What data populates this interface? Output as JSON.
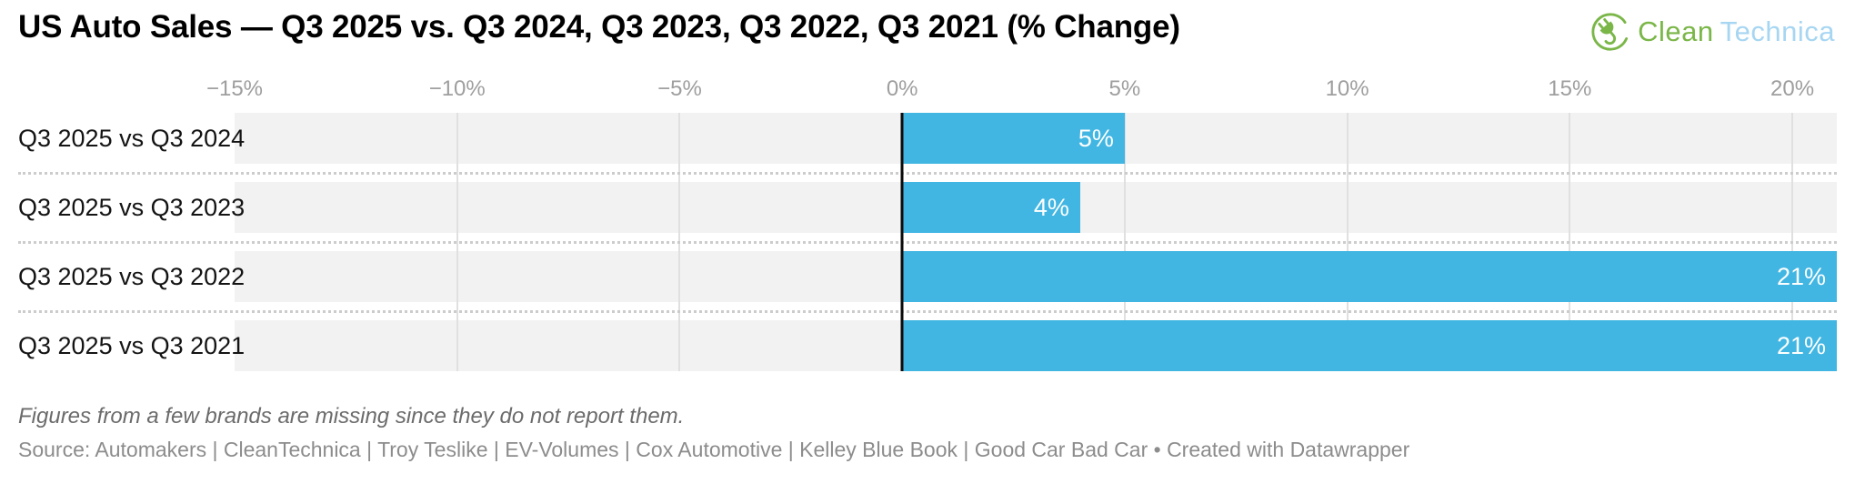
{
  "header": {
    "title": "US Auto Sales — Q3 2025 vs. Q3 2024, Q3 2023, Q3 2022, Q3 2021 (% Change)",
    "logo": {
      "icon": "cleantechnica-plug-icon",
      "text_green": "Clean",
      "text_blue": "Technica",
      "green_color": "#7ab648",
      "blue_color": "#a7d6f2"
    }
  },
  "chart_data": {
    "type": "bar",
    "orientation": "horizontal",
    "title": "US Auto Sales — Q3 2025 vs. Q3 2024, Q3 2023, Q3 2022, Q3 2021 (% Change)",
    "categories": [
      "Q3 2025 vs Q3 2024",
      "Q3 2025 vs Q3 2023",
      "Q3 2025 vs Q3 2022",
      "Q3 2025 vs Q3 2021"
    ],
    "values": [
      5,
      4,
      21,
      21
    ],
    "bar_labels": [
      "5%",
      "4%",
      "21%",
      "21%"
    ],
    "xlabel": "",
    "ylabel": "",
    "axis": {
      "min": -15,
      "max": 21,
      "unit": "%",
      "grid": true,
      "ticks": [
        {
          "value": -15,
          "label": "−15%"
        },
        {
          "value": -10,
          "label": "−10%"
        },
        {
          "value": -5,
          "label": "−5%"
        },
        {
          "value": 0,
          "label": "0%"
        },
        {
          "value": 5,
          "label": "5%"
        },
        {
          "value": 10,
          "label": "10%"
        },
        {
          "value": 15,
          "label": "15%"
        },
        {
          "value": 20,
          "label": "20%"
        }
      ]
    },
    "colors": {
      "bar": "#41b6e2",
      "track": "#f2f2f2",
      "gridline": "#e0e0e0",
      "zero_line": "#0a0a0a",
      "value_label": "#ffffff",
      "tick_label": "#9e9e9e"
    }
  },
  "footer": {
    "note": "Figures from a few brands are missing since they do not report them.",
    "source": "Source: Automakers | CleanTechnica | Troy Teslike | EV-Volumes | Cox Automotive | Kelley Blue Book | Good Car Bad Car • Created with Datawrapper"
  }
}
